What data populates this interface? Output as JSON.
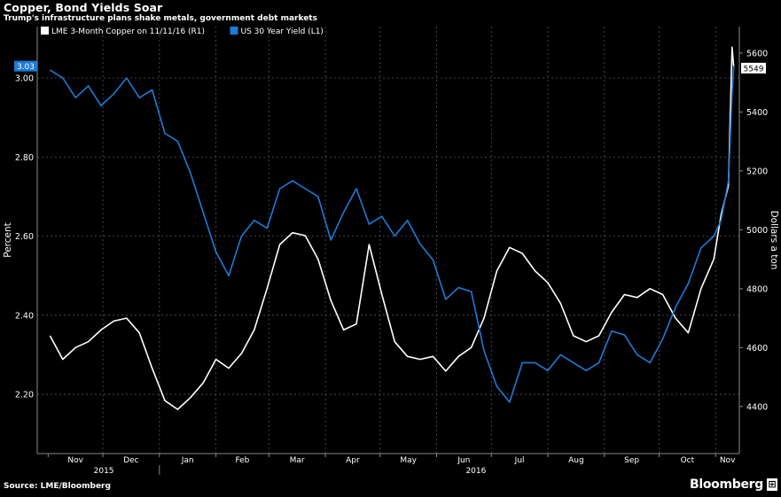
{
  "header": {
    "title": "Copper, Bond Yields Soar",
    "subtitle": "Trump's infrastructure plans shake metals, government debt markets"
  },
  "footer": {
    "source": "Source: LME/Bloomberg",
    "brand": "Bloomberg",
    "brand_mark": "⊞"
  },
  "colors": {
    "background": "#000000",
    "copper_line": "#ffffff",
    "yield_line": "#1e7bd6",
    "grid": "#555555"
  },
  "chart_data": {
    "type": "line",
    "grid": true,
    "legend_placement": "top-left",
    "x_ticks": [
      "Nov",
      "Dec",
      "Jan",
      "Feb",
      "Mar",
      "Apr",
      "May",
      "Jun",
      "Jul",
      "Aug",
      "Sep",
      "Oct",
      "Nov"
    ],
    "year_labels": [
      "2015",
      "2016"
    ],
    "left_axis": {
      "label": "Percent",
      "ylim": [
        2.05,
        3.13
      ],
      "ticks": [
        "3.00",
        "2.80",
        "2.60",
        "2.40",
        "2.20"
      ],
      "tick_values": [
        3.0,
        2.8,
        2.6,
        2.4,
        2.2
      ],
      "last_value_label": "3.03"
    },
    "right_axis": {
      "label": "Dollars a ton",
      "ylim": [
        4240,
        5690
      ],
      "ticks": [
        "5600",
        "5400",
        "5200",
        "5000",
        "4800",
        "4600",
        "4400"
      ],
      "tick_values": [
        5600,
        5400,
        5200,
        5000,
        4800,
        4600,
        4400
      ],
      "last_value_label": "5549"
    },
    "series": [
      {
        "name": "LME 3-Month Copper on 11/11/16 (R1)",
        "axis": "right",
        "color": "#ffffff",
        "x": [
          "2015-11-02",
          "2015-11-09",
          "2015-11-16",
          "2015-11-23",
          "2015-11-30",
          "2015-12-07",
          "2015-12-14",
          "2015-12-21",
          "2015-12-28",
          "2016-01-04",
          "2016-01-11",
          "2016-01-18",
          "2016-01-25",
          "2016-02-01",
          "2016-02-08",
          "2016-02-15",
          "2016-02-22",
          "2016-02-29",
          "2016-03-07",
          "2016-03-14",
          "2016-03-21",
          "2016-03-28",
          "2016-04-04",
          "2016-04-11",
          "2016-04-18",
          "2016-04-25",
          "2016-05-02",
          "2016-05-09",
          "2016-05-16",
          "2016-05-23",
          "2016-05-30",
          "2016-06-06",
          "2016-06-13",
          "2016-06-20",
          "2016-06-27",
          "2016-07-04",
          "2016-07-11",
          "2016-07-18",
          "2016-07-25",
          "2016-08-01",
          "2016-08-08",
          "2016-08-15",
          "2016-08-22",
          "2016-08-29",
          "2016-09-05",
          "2016-09-12",
          "2016-09-19",
          "2016-09-26",
          "2016-10-03",
          "2016-10-10",
          "2016-10-17",
          "2016-10-24",
          "2016-10-31",
          "2016-11-04",
          "2016-11-08",
          "2016-11-10",
          "2016-11-11"
        ],
        "values": [
          4640,
          4560,
          4600,
          4620,
          4660,
          4690,
          4700,
          4650,
          4530,
          4420,
          4390,
          4430,
          4480,
          4560,
          4530,
          4580,
          4660,
          4800,
          4950,
          4990,
          4980,
          4900,
          4760,
          4660,
          4680,
          4950,
          4780,
          4620,
          4570,
          4560,
          4570,
          4520,
          4570,
          4600,
          4700,
          4860,
          4940,
          4920,
          4860,
          4820,
          4750,
          4640,
          4620,
          4640,
          4720,
          4780,
          4770,
          4800,
          4780,
          4700,
          4650,
          4800,
          4900,
          5050,
          5150,
          5620,
          5549
        ]
      },
      {
        "name": "US 30 Year Yield (L1)",
        "axis": "left",
        "color": "#1e7bd6",
        "x": [
          "2015-11-02",
          "2015-11-09",
          "2015-11-16",
          "2015-11-23",
          "2015-11-30",
          "2015-12-07",
          "2015-12-14",
          "2015-12-21",
          "2015-12-28",
          "2016-01-04",
          "2016-01-11",
          "2016-01-18",
          "2016-01-25",
          "2016-02-01",
          "2016-02-08",
          "2016-02-15",
          "2016-02-22",
          "2016-02-29",
          "2016-03-07",
          "2016-03-14",
          "2016-03-21",
          "2016-03-28",
          "2016-04-04",
          "2016-04-11",
          "2016-04-18",
          "2016-04-25",
          "2016-05-02",
          "2016-05-09",
          "2016-05-16",
          "2016-05-23",
          "2016-05-30",
          "2016-06-06",
          "2016-06-13",
          "2016-06-20",
          "2016-06-27",
          "2016-07-04",
          "2016-07-11",
          "2016-07-18",
          "2016-07-25",
          "2016-08-01",
          "2016-08-08",
          "2016-08-15",
          "2016-08-22",
          "2016-08-29",
          "2016-09-05",
          "2016-09-12",
          "2016-09-19",
          "2016-09-26",
          "2016-10-03",
          "2016-10-10",
          "2016-10-17",
          "2016-10-24",
          "2016-10-31",
          "2016-11-04",
          "2016-11-08",
          "2016-11-10",
          "2016-11-11"
        ],
        "values": [
          3.02,
          3.0,
          2.95,
          2.98,
          2.93,
          2.96,
          3.0,
          2.95,
          2.97,
          2.86,
          2.84,
          2.76,
          2.66,
          2.56,
          2.5,
          2.6,
          2.64,
          2.62,
          2.72,
          2.74,
          2.72,
          2.7,
          2.59,
          2.66,
          2.72,
          2.63,
          2.65,
          2.6,
          2.64,
          2.58,
          2.54,
          2.44,
          2.47,
          2.46,
          2.31,
          2.22,
          2.18,
          2.28,
          2.28,
          2.26,
          2.3,
          2.28,
          2.26,
          2.28,
          2.36,
          2.35,
          2.3,
          2.28,
          2.34,
          2.42,
          2.48,
          2.57,
          2.6,
          2.64,
          2.74,
          2.96,
          3.03
        ]
      }
    ]
  }
}
